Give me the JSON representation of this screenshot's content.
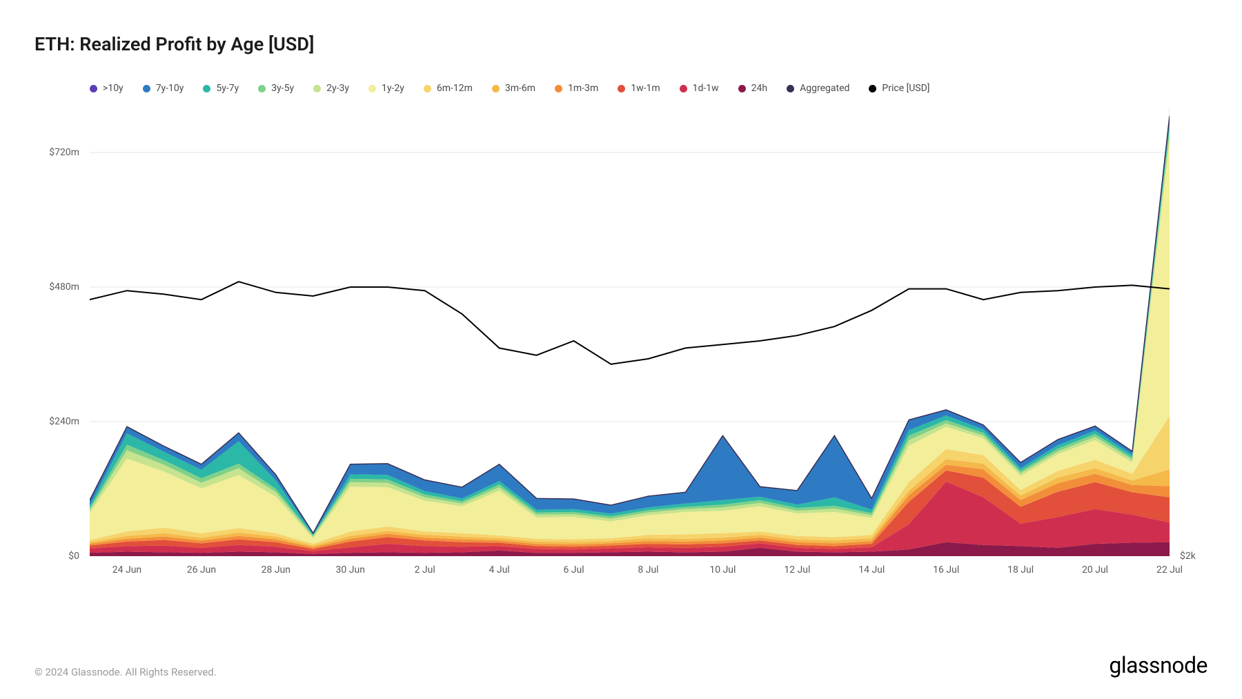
{
  "title": "ETH: Realized Profit by Age [USD]",
  "copyright": "© 2024 Glassnode. All Rights Reserved.",
  "brand": "glassnode",
  "legend": [
    {
      "label": ">10y",
      "color": "#5b3db8"
    },
    {
      "label": "7y-10y",
      "color": "#2e7bc4"
    },
    {
      "label": "5y-7y",
      "color": "#2bb8a6"
    },
    {
      "label": "3y-5y",
      "color": "#7fd089"
    },
    {
      "label": "2y-3y",
      "color": "#c6e38d"
    },
    {
      "label": "1y-2y",
      "color": "#f3ee9a"
    },
    {
      "label": "6m-12m",
      "color": "#f6d36b"
    },
    {
      "label": "3m-6m",
      "color": "#f5b84a"
    },
    {
      "label": "1m-3m",
      "color": "#f28e3a"
    },
    {
      "label": "1w-1m",
      "color": "#e24f3a"
    },
    {
      "label": "1d-1w",
      "color": "#d02e4f"
    },
    {
      "label": "24h",
      "color": "#8b1a4a"
    },
    {
      "label": "Aggregated",
      "color": "#3a2e54"
    },
    {
      "label": "Price [USD]",
      "color": "#000000"
    }
  ],
  "chart": {
    "type": "stacked-area-with-line",
    "background_color": "#ffffff",
    "grid_color": "#e5e5e5",
    "x_dates": [
      "23 Jun",
      "24 Jun",
      "25 Jun",
      "26 Jun",
      "27 Jun",
      "28 Jun",
      "29 Jun",
      "30 Jun",
      "1 Jul",
      "2 Jul",
      "3 Jul",
      "4 Jul",
      "5 Jul",
      "6 Jul",
      "7 Jul",
      "8 Jul",
      "9 Jul",
      "10 Jul",
      "11 Jul",
      "12 Jul",
      "13 Jul",
      "14 Jul",
      "15 Jul",
      "16 Jul",
      "17 Jul",
      "18 Jul",
      "19 Jul",
      "20 Jul",
      "21 Jul",
      "22 Jul"
    ],
    "x_ticks": [
      "24 Jun",
      "26 Jun",
      "28 Jun",
      "30 Jun",
      "2 Jul",
      "4 Jul",
      "6 Jul",
      "8 Jul",
      "10 Jul",
      "12 Jul",
      "14 Jul",
      "16 Jul",
      "18 Jul",
      "20 Jul",
      "22 Jul"
    ],
    "y_left": {
      "min": 0,
      "max": 800,
      "ticks": [
        0,
        240,
        480,
        720
      ],
      "labels": [
        "$0",
        "$240m",
        "$480m",
        "$720m"
      ]
    },
    "y_right": {
      "min": 2000,
      "max": 4500,
      "tick": 2000,
      "label": "$2k"
    },
    "price_line": {
      "color": "#000000",
      "width": 2,
      "values": [
        3430,
        3480,
        3460,
        3430,
        3530,
        3470,
        3450,
        3500,
        3500,
        3480,
        3350,
        3160,
        3120,
        3200,
        3070,
        3100,
        3160,
        3180,
        3200,
        3230,
        3280,
        3370,
        3490,
        3490,
        3430,
        3470,
        3480,
        3500,
        3510,
        3490
      ]
    },
    "stacked_series_bottom_to_top": [
      {
        "name": "24h",
        "color": "#8b1a4a",
        "values": [
          6,
          8,
          7,
          6,
          8,
          7,
          4,
          6,
          7,
          6,
          7,
          10,
          6,
          6,
          7,
          8,
          7,
          8,
          15,
          8,
          7,
          8,
          12,
          25,
          20,
          18,
          15,
          22,
          24,
          25
        ]
      },
      {
        "name": "1d-1w",
        "color": "#d02e4f",
        "values": [
          8,
          10,
          12,
          9,
          12,
          10,
          5,
          10,
          15,
          12,
          10,
          8,
          7,
          6,
          7,
          8,
          8,
          9,
          8,
          7,
          6,
          8,
          45,
          108,
          85,
          40,
          55,
          62,
          50,
          35
        ]
      },
      {
        "name": "1w-1m",
        "color": "#e24f3a",
        "values": [
          5,
          8,
          10,
          8,
          10,
          8,
          4,
          10,
          12,
          10,
          8,
          6,
          5,
          5,
          5,
          6,
          6,
          6,
          5,
          5,
          5,
          6,
          40,
          20,
          35,
          30,
          45,
          48,
          40,
          45
        ]
      },
      {
        "name": "1m-3m",
        "color": "#f28e3a",
        "values": [
          3,
          5,
          6,
          5,
          6,
          5,
          3,
          5,
          6,
          5,
          5,
          4,
          4,
          4,
          4,
          5,
          5,
          5,
          5,
          5,
          5,
          5,
          12,
          10,
          15,
          12,
          15,
          15,
          13,
          20
        ]
      },
      {
        "name": "3m-6m",
        "color": "#f5b84a",
        "values": [
          3,
          5,
          6,
          5,
          6,
          5,
          3,
          5,
          5,
          5,
          5,
          4,
          4,
          4,
          4,
          5,
          5,
          5,
          5,
          5,
          5,
          5,
          8,
          10,
          10,
          8,
          10,
          10,
          8,
          30
        ]
      },
      {
        "name": "6m-12m",
        "color": "#f6d36b",
        "values": [
          4,
          8,
          10,
          8,
          8,
          6,
          3,
          8,
          8,
          6,
          6,
          5,
          5,
          5,
          5,
          6,
          8,
          8,
          6,
          6,
          6,
          6,
          15,
          18,
          15,
          10,
          12,
          15,
          12,
          95
        ]
      },
      {
        "name": "1y-2y",
        "color": "#f3ee9a",
        "values": [
          48,
          130,
          100,
          80,
          95,
          65,
          10,
          80,
          70,
          55,
          48,
          80,
          38,
          40,
          30,
          35,
          40,
          40,
          45,
          40,
          45,
          30,
          65,
          40,
          30,
          25,
          30,
          35,
          20,
          490
        ]
      },
      {
        "name": "2y-3y",
        "color": "#c6e38d",
        "values": [
          5,
          15,
          12,
          10,
          12,
          8,
          3,
          8,
          8,
          6,
          5,
          6,
          5,
          5,
          5,
          5,
          5,
          6,
          6,
          5,
          6,
          5,
          10,
          6,
          5,
          5,
          5,
          6,
          5,
          15
        ]
      },
      {
        "name": "3y-5y",
        "color": "#7fd089",
        "values": [
          4,
          10,
          8,
          8,
          8,
          6,
          2,
          6,
          6,
          5,
          4,
          5,
          4,
          4,
          4,
          4,
          4,
          5,
          5,
          5,
          5,
          4,
          8,
          6,
          5,
          4,
          5,
          5,
          4,
          10
        ]
      },
      {
        "name": "5y-7y",
        "color": "#2bb8a6",
        "values": [
          4,
          20,
          15,
          15,
          40,
          15,
          2,
          8,
          8,
          6,
          5,
          6,
          5,
          5,
          5,
          5,
          6,
          8,
          6,
          6,
          15,
          6,
          10,
          8,
          6,
          5,
          6,
          6,
          5,
          10
        ]
      },
      {
        "name": "7y-10y",
        "color": "#2e7bc4",
        "values": [
          10,
          12,
          10,
          10,
          15,
          10,
          2,
          18,
          20,
          20,
          20,
          30,
          20,
          18,
          15,
          20,
          20,
          115,
          18,
          25,
          110,
          20,
          18,
          10,
          8,
          10,
          10,
          8,
          6,
          10
        ]
      },
      {
        "name": ">10y",
        "color": "#5b3db8",
        "values": [
          0,
          0,
          0,
          0,
          0,
          0,
          0,
          0,
          0,
          0,
          0,
          0,
          0,
          0,
          0,
          0,
          0,
          0,
          0,
          0,
          0,
          0,
          0,
          0,
          0,
          0,
          0,
          0,
          0,
          0
        ]
      }
    ]
  }
}
